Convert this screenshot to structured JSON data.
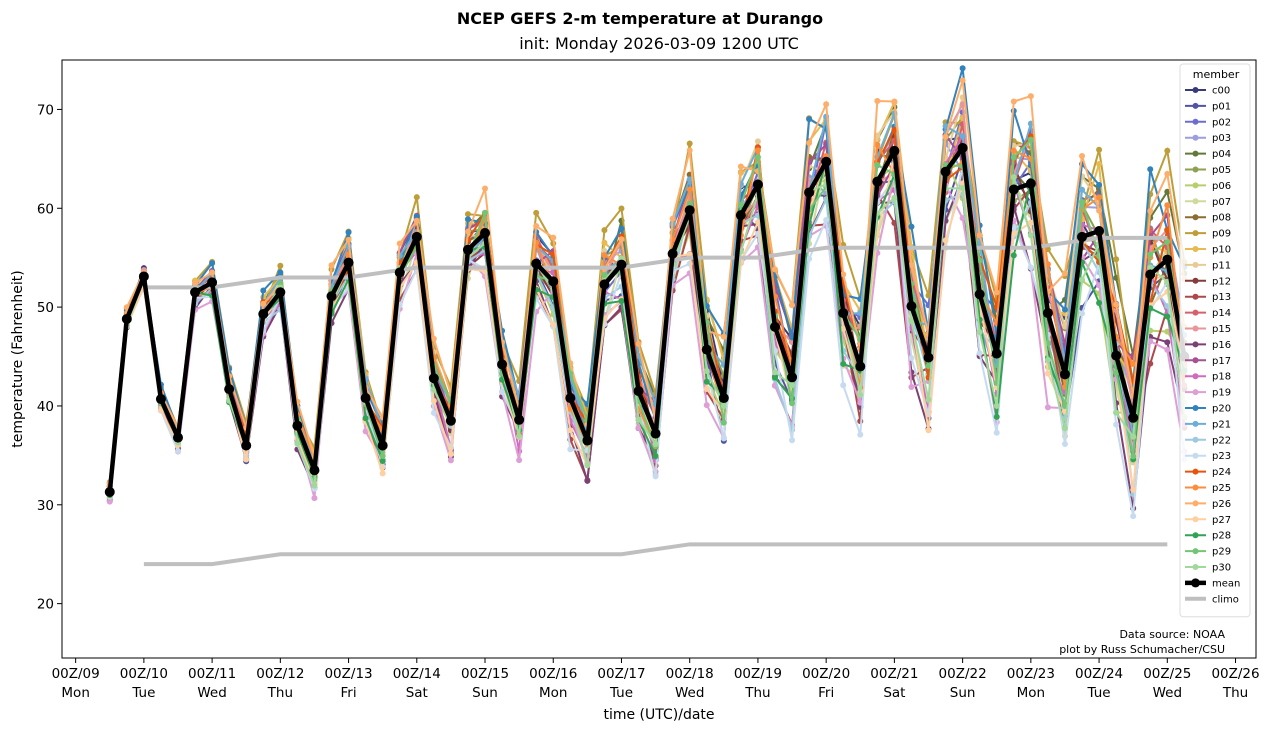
{
  "chart_data": {
    "type": "line",
    "title": "NCEP GEFS 2-m temperature at Durango",
    "subtitle": "init: Monday 2026-03-09 1200 UTC",
    "xlabel": "time (UTC)/date",
    "ylabel": "temperature (Fahrenheit)",
    "ylim": [
      14.5,
      75
    ],
    "xlim_days": [
      -0.2,
      17.3
    ],
    "grid": false,
    "legend": {
      "title": "member",
      "placement": "top-right"
    },
    "x_ticks": [
      {
        "label": "00Z/09",
        "day": "Mon"
      },
      {
        "label": "00Z/10",
        "day": "Tue"
      },
      {
        "label": "00Z/11",
        "day": "Wed"
      },
      {
        "label": "00Z/12",
        "day": "Thu"
      },
      {
        "label": "00Z/13",
        "day": "Fri"
      },
      {
        "label": "00Z/14",
        "day": "Sat"
      },
      {
        "label": "00Z/15",
        "day": "Sun"
      },
      {
        "label": "00Z/16",
        "day": "Mon"
      },
      {
        "label": "00Z/17",
        "day": "Tue"
      },
      {
        "label": "00Z/18",
        "day": "Wed"
      },
      {
        "label": "00Z/19",
        "day": "Thu"
      },
      {
        "label": "00Z/20",
        "day": "Fri"
      },
      {
        "label": "00Z/21",
        "day": "Sat"
      },
      {
        "label": "00Z/22",
        "day": "Sun"
      },
      {
        "label": "00Z/23",
        "day": "Mon"
      },
      {
        "label": "00Z/24",
        "day": "Tue"
      },
      {
        "label": "00Z/25",
        "day": "Wed"
      },
      {
        "label": "00Z/26",
        "day": "Thu"
      }
    ],
    "y_ticks": [
      20,
      30,
      40,
      50,
      60,
      70
    ],
    "time_start_days": 0.5,
    "time_step_hours": 6,
    "mean": [
      31.3,
      48.8,
      53.1,
      40.7,
      36.8,
      51.5,
      52.5,
      41.7,
      36.0,
      49.3,
      51.5,
      38.0,
      33.5,
      51.1,
      54.5,
      40.8,
      36.0,
      53.5,
      57.1,
      42.8,
      38.5,
      55.8,
      57.5,
      44.2,
      38.6,
      54.4,
      52.6,
      40.8,
      36.5,
      52.3,
      54.3,
      41.5,
      37.2,
      55.4,
      59.8,
      45.7,
      40.8,
      59.3,
      62.4,
      48.0,
      42.9,
      61.6,
      64.7,
      49.4,
      44.0,
      62.7,
      65.8,
      50.1,
      44.9,
      63.7,
      66.1,
      51.3,
      45.3,
      61.9,
      62.5,
      49.4,
      43.2,
      57.1,
      57.7,
      45.1,
      38.8,
      53.3,
      54.8,
      45.0
    ],
    "climo_high": {
      "days": [
        1,
        2,
        3,
        4,
        5,
        6,
        7,
        8,
        9,
        10,
        11,
        12,
        13,
        14,
        15,
        16
      ],
      "values": [
        52,
        52,
        53,
        53,
        54,
        54,
        54,
        54,
        55,
        55,
        56,
        56,
        56,
        56,
        57,
        57
      ]
    },
    "climo_low": {
      "days": [
        1,
        2,
        3,
        4,
        5,
        6,
        7,
        8,
        9,
        10,
        11,
        12,
        13,
        14,
        15,
        16
      ],
      "values": [
        24,
        24,
        25,
        25,
        25,
        25,
        25,
        25,
        26,
        26,
        26,
        26,
        26,
        26,
        26,
        26
      ]
    },
    "members": [
      {
        "name": "c00",
        "color": "#393b79"
      },
      {
        "name": "p01",
        "color": "#5254a3"
      },
      {
        "name": "p02",
        "color": "#6b6ecf"
      },
      {
        "name": "p03",
        "color": "#9c9ede"
      },
      {
        "name": "p04",
        "color": "#637939"
      },
      {
        "name": "p05",
        "color": "#8ca252"
      },
      {
        "name": "p06",
        "color": "#b5cf6b"
      },
      {
        "name": "p07",
        "color": "#cedb9c"
      },
      {
        "name": "p08",
        "color": "#8c6d31"
      },
      {
        "name": "p09",
        "color": "#bd9e39"
      },
      {
        "name": "p10",
        "color": "#e7ba52"
      },
      {
        "name": "p11",
        "color": "#e7cb94"
      },
      {
        "name": "p12",
        "color": "#843c39"
      },
      {
        "name": "p13",
        "color": "#ad494a"
      },
      {
        "name": "p14",
        "color": "#d6616b"
      },
      {
        "name": "p15",
        "color": "#e7969c"
      },
      {
        "name": "p16",
        "color": "#7b4173"
      },
      {
        "name": "p17",
        "color": "#a55194"
      },
      {
        "name": "p18",
        "color": "#ce6dbd"
      },
      {
        "name": "p19",
        "color": "#de9ed6"
      },
      {
        "name": "p20",
        "color": "#3182bd"
      },
      {
        "name": "p21",
        "color": "#6baed6"
      },
      {
        "name": "p22",
        "color": "#9ecae1"
      },
      {
        "name": "p23",
        "color": "#c6dbef"
      },
      {
        "name": "p24",
        "color": "#e6550d"
      },
      {
        "name": "p25",
        "color": "#fd8d3c"
      },
      {
        "name": "p26",
        "color": "#fdae6b"
      },
      {
        "name": "p27",
        "color": "#fdd0a2"
      },
      {
        "name": "p28",
        "color": "#31a354"
      },
      {
        "name": "p29",
        "color": "#74c476"
      },
      {
        "name": "p30",
        "color": "#a1d99b"
      }
    ],
    "mean_series": {
      "name": "mean",
      "color": "#000000"
    },
    "climo_series": {
      "name": "climo",
      "color": "#bfbfbf"
    },
    "annotations": [
      "Data source: NOAA",
      "plot by Russ Schumacher/CSU"
    ]
  }
}
